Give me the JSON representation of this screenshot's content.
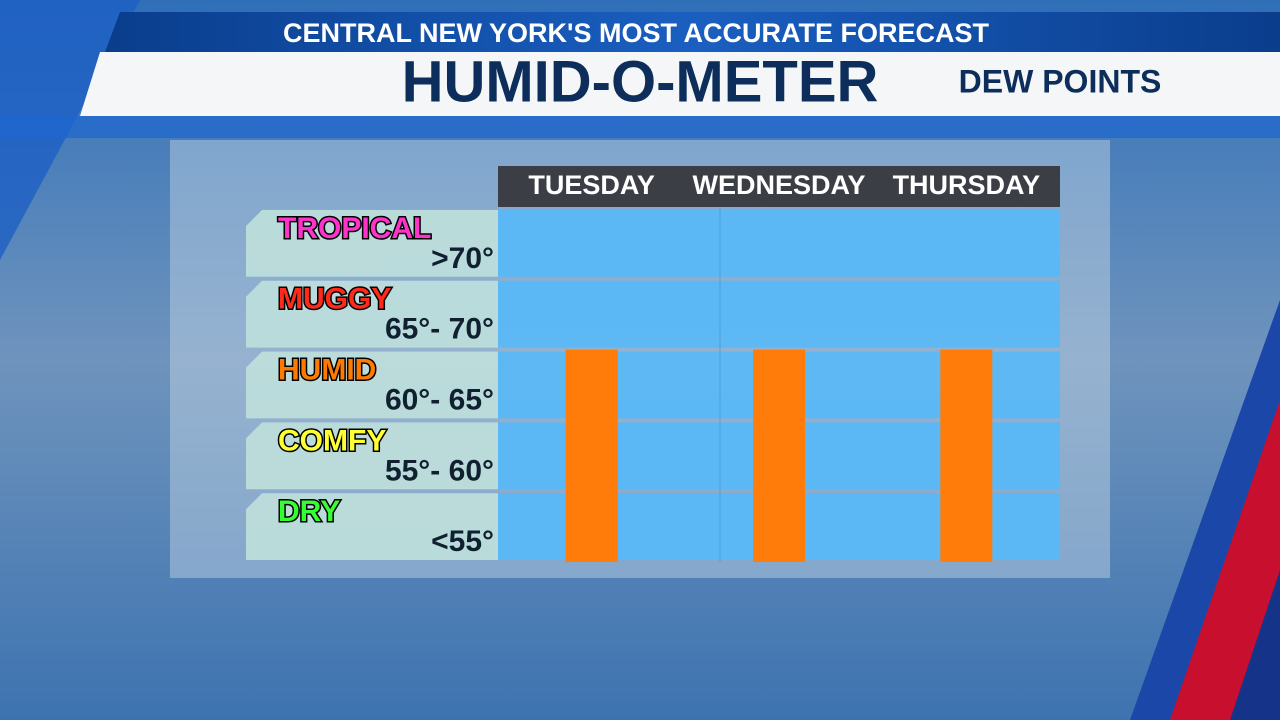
{
  "chart_data": {
    "type": "bar",
    "banner": "CENTRAL NEW YORK'S MOST ACCURATE FORECAST",
    "title": "HUMID-O-METER",
    "subtitle": "DEW POINTS",
    "categories": [
      "TUESDAY",
      "WEDNESDAY",
      "THURSDAY"
    ],
    "values": [
      65,
      65,
      65
    ],
    "color": "#ff7b0a",
    "ylim": [
      50,
      75
    ],
    "bands": [
      {
        "label": "TROPICAL",
        "range": ">70°",
        "color": "#ff33cc"
      },
      {
        "label": "MUGGY",
        "range": "65°- 70°",
        "color": "#ff2a1a"
      },
      {
        "label": "HUMID",
        "range": "60°- 65°",
        "color": "#ff7a00"
      },
      {
        "label": "COMFY",
        "range": "55°- 60°",
        "color": "#ffff33"
      },
      {
        "label": "DRY",
        "range": "<55°",
        "color": "#33ff33"
      }
    ]
  }
}
